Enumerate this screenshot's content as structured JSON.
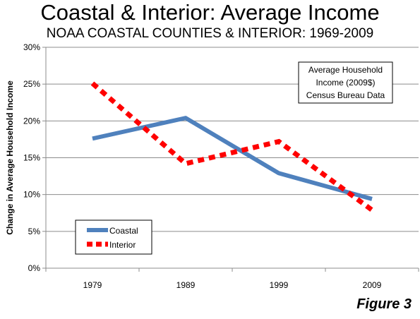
{
  "title": "Coastal & Interior: Average Income",
  "subtitle": "NOAA COASTAL COUNTIES & INTERIOR: 1969-2009",
  "figure_label": "Figure 3",
  "annotation": [
    "Average Household",
    "Income (2009$)",
    "Census Bureau Data"
  ],
  "colors": {
    "coastal": "#4f81bd",
    "interior": "#ff0000",
    "grid": "#8c8c8c",
    "axis": "#8c8c8c"
  },
  "chart_data": {
    "type": "line",
    "x": [
      "1979",
      "1989",
      "1999",
      "2009"
    ],
    "series": [
      {
        "name": "Coastal",
        "values": [
          17.6,
          20.4,
          12.9,
          9.4
        ],
        "style": "solid"
      },
      {
        "name": "Interior",
        "values": [
          25.1,
          14.2,
          17.2,
          7.9
        ],
        "style": "dashed"
      }
    ],
    "ylabel": "Change in Average Household Income",
    "ylim": [
      0,
      30
    ],
    "yticks": [
      "0%",
      "5%",
      "10%",
      "15%",
      "20%",
      "25%",
      "30%"
    ],
    "grid": true,
    "legend": "bottom-left"
  }
}
